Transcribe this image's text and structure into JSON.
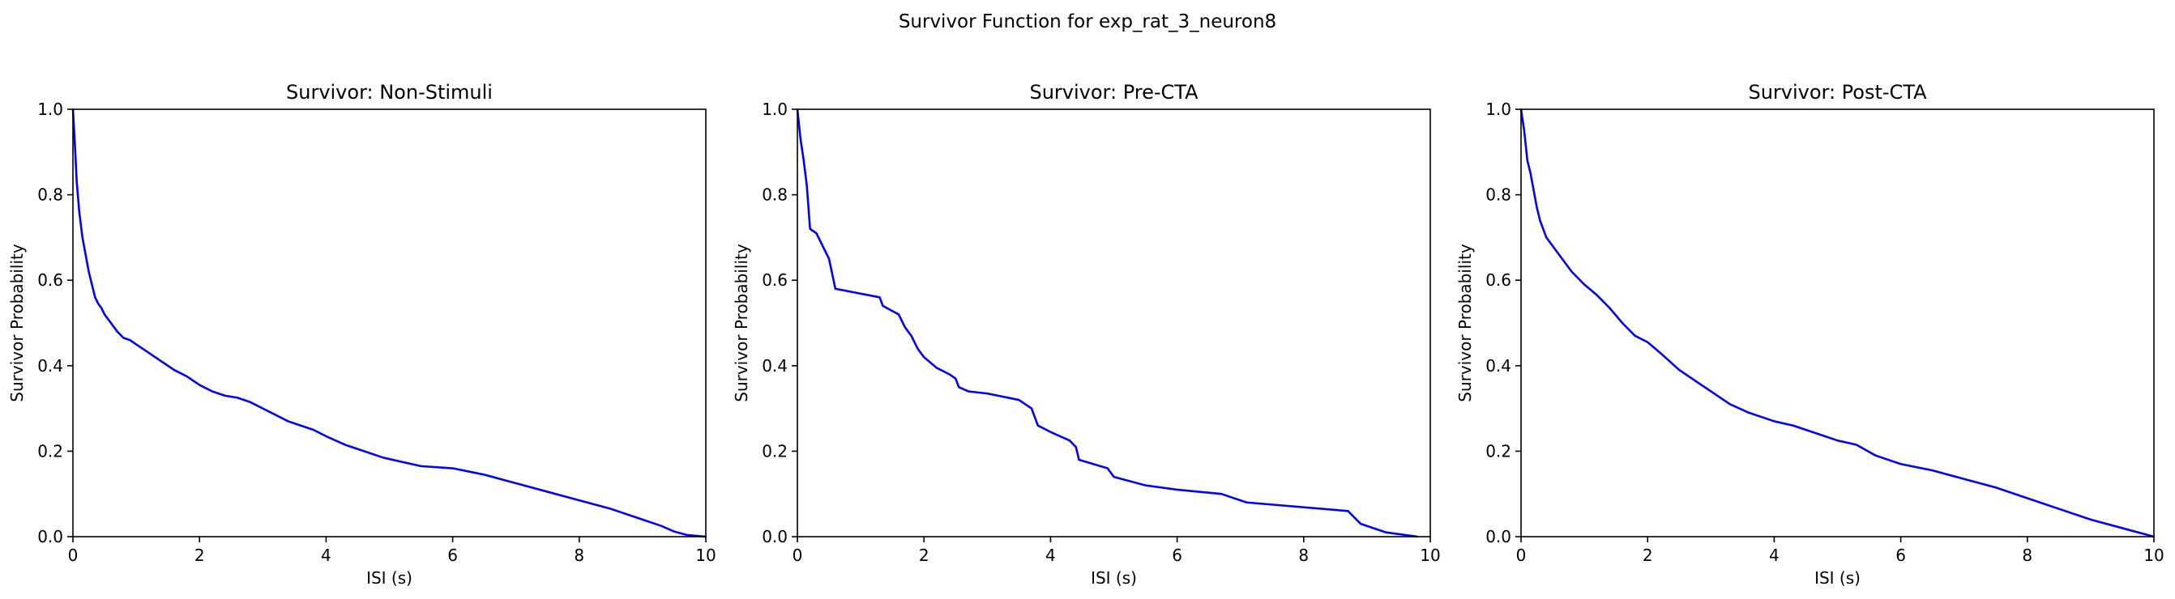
{
  "suptitle": "Survivor Function for exp_rat_3_neuron8",
  "colors": {
    "line": "#0000ff",
    "axes": "#000000",
    "background": "#ffffff"
  },
  "chart_data": [
    {
      "type": "line",
      "title": "Survivor: Non-Stimuli",
      "xlabel": "ISI (s)",
      "ylabel": "Survivor Probability",
      "xlim": [
        0,
        10
      ],
      "ylim": [
        0,
        1
      ],
      "xticks": [
        0,
        2,
        4,
        6,
        8,
        10
      ],
      "yticks": [
        0.0,
        0.2,
        0.4,
        0.6,
        0.8,
        1.0
      ],
      "grid": false,
      "series": [
        {
          "x": [
            0,
            0.03,
            0.06,
            0.1,
            0.15,
            0.2,
            0.25,
            0.3,
            0.35,
            0.4,
            0.45,
            0.5,
            0.6,
            0.7,
            0.8,
            0.9,
            1.0,
            1.2,
            1.4,
            1.6,
            1.8,
            2.0,
            2.2,
            2.4,
            2.6,
            2.8,
            3.0,
            3.2,
            3.4,
            3.6,
            3.8,
            4.0,
            4.3,
            4.6,
            4.9,
            5.2,
            5.5,
            6.0,
            6.5,
            7.0,
            7.5,
            8.0,
            8.5,
            9.0,
            9.3,
            9.5,
            9.7,
            10.0
          ],
          "y": [
            1.0,
            0.92,
            0.83,
            0.76,
            0.7,
            0.66,
            0.62,
            0.59,
            0.56,
            0.545,
            0.535,
            0.52,
            0.5,
            0.48,
            0.465,
            0.46,
            0.45,
            0.43,
            0.41,
            0.39,
            0.375,
            0.355,
            0.34,
            0.33,
            0.325,
            0.315,
            0.3,
            0.285,
            0.27,
            0.26,
            0.25,
            0.235,
            0.215,
            0.2,
            0.185,
            0.175,
            0.165,
            0.16,
            0.145,
            0.125,
            0.105,
            0.085,
            0.065,
            0.04,
            0.025,
            0.012,
            0.004,
            0.0
          ]
        }
      ]
    },
    {
      "type": "line",
      "title": "Survivor: Pre-CTA",
      "xlabel": "ISI (s)",
      "ylabel": "Survivor Probability",
      "xlim": [
        0,
        10
      ],
      "ylim": [
        0,
        1
      ],
      "xticks": [
        0,
        2,
        4,
        6,
        8,
        10
      ],
      "yticks": [
        0.0,
        0.2,
        0.4,
        0.6,
        0.8,
        1.0
      ],
      "grid": false,
      "series": [
        {
          "x": [
            0,
            0.05,
            0.1,
            0.15,
            0.2,
            0.3,
            0.4,
            0.5,
            0.6,
            1.3,
            1.35,
            1.6,
            1.7,
            1.8,
            1.9,
            2.0,
            2.2,
            2.4,
            2.5,
            2.55,
            2.7,
            3.0,
            3.5,
            3.7,
            3.75,
            3.8,
            4.0,
            4.3,
            4.4,
            4.45,
            4.9,
            5.0,
            5.5,
            6.0,
            6.7,
            7.1,
            8.7,
            8.9,
            9.3,
            9.8
          ],
          "y": [
            1.0,
            0.93,
            0.88,
            0.82,
            0.72,
            0.71,
            0.68,
            0.65,
            0.58,
            0.56,
            0.54,
            0.52,
            0.49,
            0.47,
            0.44,
            0.42,
            0.395,
            0.38,
            0.37,
            0.35,
            0.34,
            0.335,
            0.32,
            0.3,
            0.28,
            0.26,
            0.245,
            0.225,
            0.21,
            0.18,
            0.16,
            0.14,
            0.12,
            0.11,
            0.1,
            0.08,
            0.06,
            0.03,
            0.01,
            0.0
          ]
        }
      ]
    },
    {
      "type": "line",
      "title": "Survivor: Post-CTA",
      "xlabel": "ISI (s)",
      "ylabel": "Survivor Probability",
      "xlim": [
        0,
        10
      ],
      "ylim": [
        0,
        1
      ],
      "xticks": [
        0,
        2,
        4,
        6,
        8,
        10
      ],
      "yticks": [
        0.0,
        0.2,
        0.4,
        0.6,
        0.8,
        1.0
      ],
      "grid": false,
      "series": [
        {
          "x": [
            0,
            0.05,
            0.1,
            0.15,
            0.2,
            0.25,
            0.3,
            0.4,
            0.5,
            0.6,
            0.8,
            1.0,
            1.2,
            1.4,
            1.6,
            1.8,
            2.0,
            2.2,
            2.5,
            2.8,
            3.0,
            3.3,
            3.6,
            4.0,
            4.3,
            4.6,
            5.0,
            5.3,
            5.6,
            6.0,
            6.5,
            7.0,
            7.5,
            8.0,
            8.5,
            9.0,
            9.5,
            10.0
          ],
          "y": [
            1.0,
            0.95,
            0.88,
            0.85,
            0.81,
            0.77,
            0.74,
            0.7,
            0.68,
            0.66,
            0.62,
            0.59,
            0.565,
            0.535,
            0.5,
            0.47,
            0.455,
            0.43,
            0.39,
            0.36,
            0.34,
            0.31,
            0.29,
            0.27,
            0.26,
            0.245,
            0.225,
            0.215,
            0.19,
            0.17,
            0.155,
            0.135,
            0.115,
            0.09,
            0.065,
            0.04,
            0.02,
            0.0
          ]
        }
      ]
    }
  ]
}
